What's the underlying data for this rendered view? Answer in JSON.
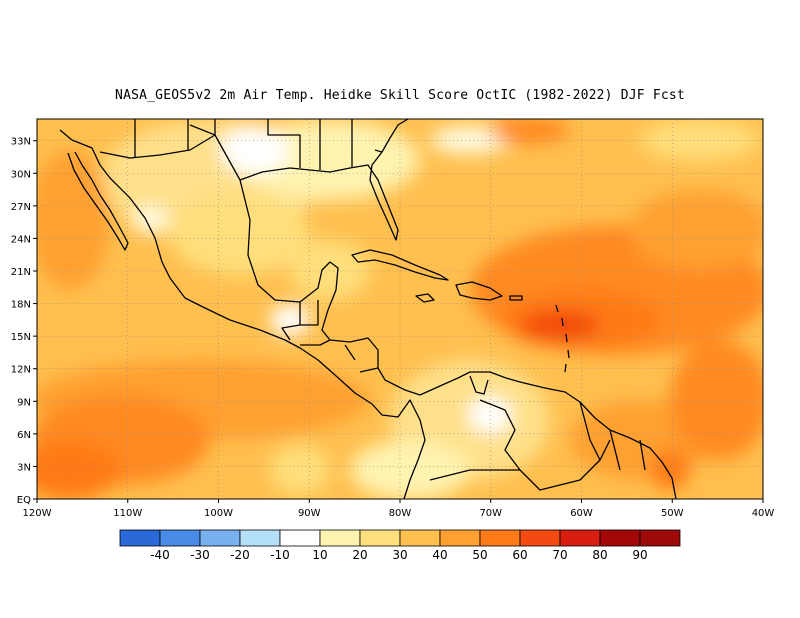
{
  "title": "NASA_GEOS5v2  2m Air Temp. Heidke Skill Score OctIC (1982-2022) DJF Fcst",
  "map": {
    "lon_range": [
      -120,
      -40
    ],
    "lat_range": [
      0,
      35
    ],
    "lon_ticks": [
      "120W",
      "110W",
      "100W",
      "90W",
      "80W",
      "70W",
      "60W",
      "50W",
      "40W"
    ],
    "lat_ticks": [
      "EQ",
      "3N",
      "6N",
      "9N",
      "12N",
      "15N",
      "18N",
      "21N",
      "24N",
      "27N",
      "30N",
      "33N"
    ],
    "gridlines": true
  },
  "colorbar": {
    "labels": [
      "-40",
      "-30",
      "-20",
      "-10",
      "10",
      "20",
      "30",
      "40",
      "50",
      "60",
      "70",
      "80",
      "90"
    ],
    "colors": [
      "#2a6ad8",
      "#4a8be8",
      "#78b0f0",
      "#b4e0fa",
      "#ffffff",
      "#fff3b0",
      "#ffdf7c",
      "#ffc04f",
      "#ffa030",
      "#ff7a18",
      "#f24a10",
      "#d81f0f",
      "#a30808"
    ]
  }
}
